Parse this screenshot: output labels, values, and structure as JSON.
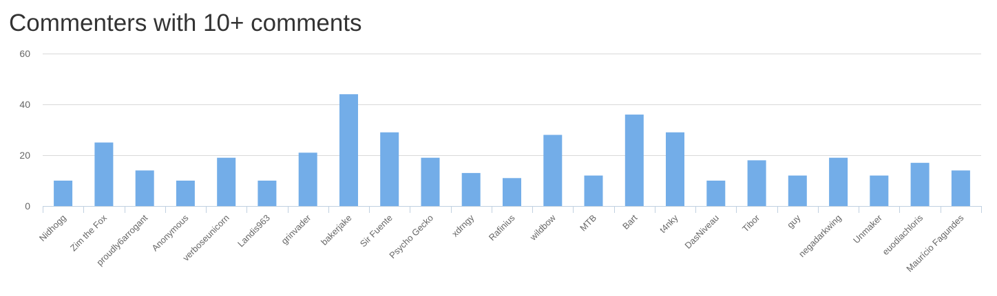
{
  "page": {
    "title": "Commenters with 10+ comments"
  },
  "colors": {
    "bar": "#73ade8",
    "grid": "#d8d8d8",
    "axis": "#c0d0e0",
    "text": "#666666",
    "title": "#333333"
  },
  "chart_data": {
    "type": "bar",
    "title": "Commenters with 10+ comments",
    "xlabel": "",
    "ylabel": "",
    "ylim": [
      0,
      60
    ],
    "yticks": [
      0,
      20,
      40,
      60
    ],
    "grid": true,
    "legend": "none",
    "categories": [
      "Nidhogg",
      "Zim the Fox",
      "proudly6arrogant",
      "Anonymous",
      "verboseunicorn",
      "Landis963",
      "grinvader",
      "bakerjake",
      "Sir Fuente",
      "Psycho Gecko",
      "xdrngy",
      "Rafinius",
      "wildbow",
      "MTB",
      "Bart",
      "t4nky",
      "DasNiveau",
      "Tibor",
      "guy",
      "negadarkwing",
      "Unmaker",
      "euodiachloris",
      "Maurício Fagundes"
    ],
    "values": [
      10,
      25,
      14,
      10,
      19,
      10,
      21,
      44,
      29,
      19,
      13,
      11,
      28,
      12,
      36,
      29,
      10,
      18,
      12,
      19,
      12,
      17,
      14
    ]
  }
}
